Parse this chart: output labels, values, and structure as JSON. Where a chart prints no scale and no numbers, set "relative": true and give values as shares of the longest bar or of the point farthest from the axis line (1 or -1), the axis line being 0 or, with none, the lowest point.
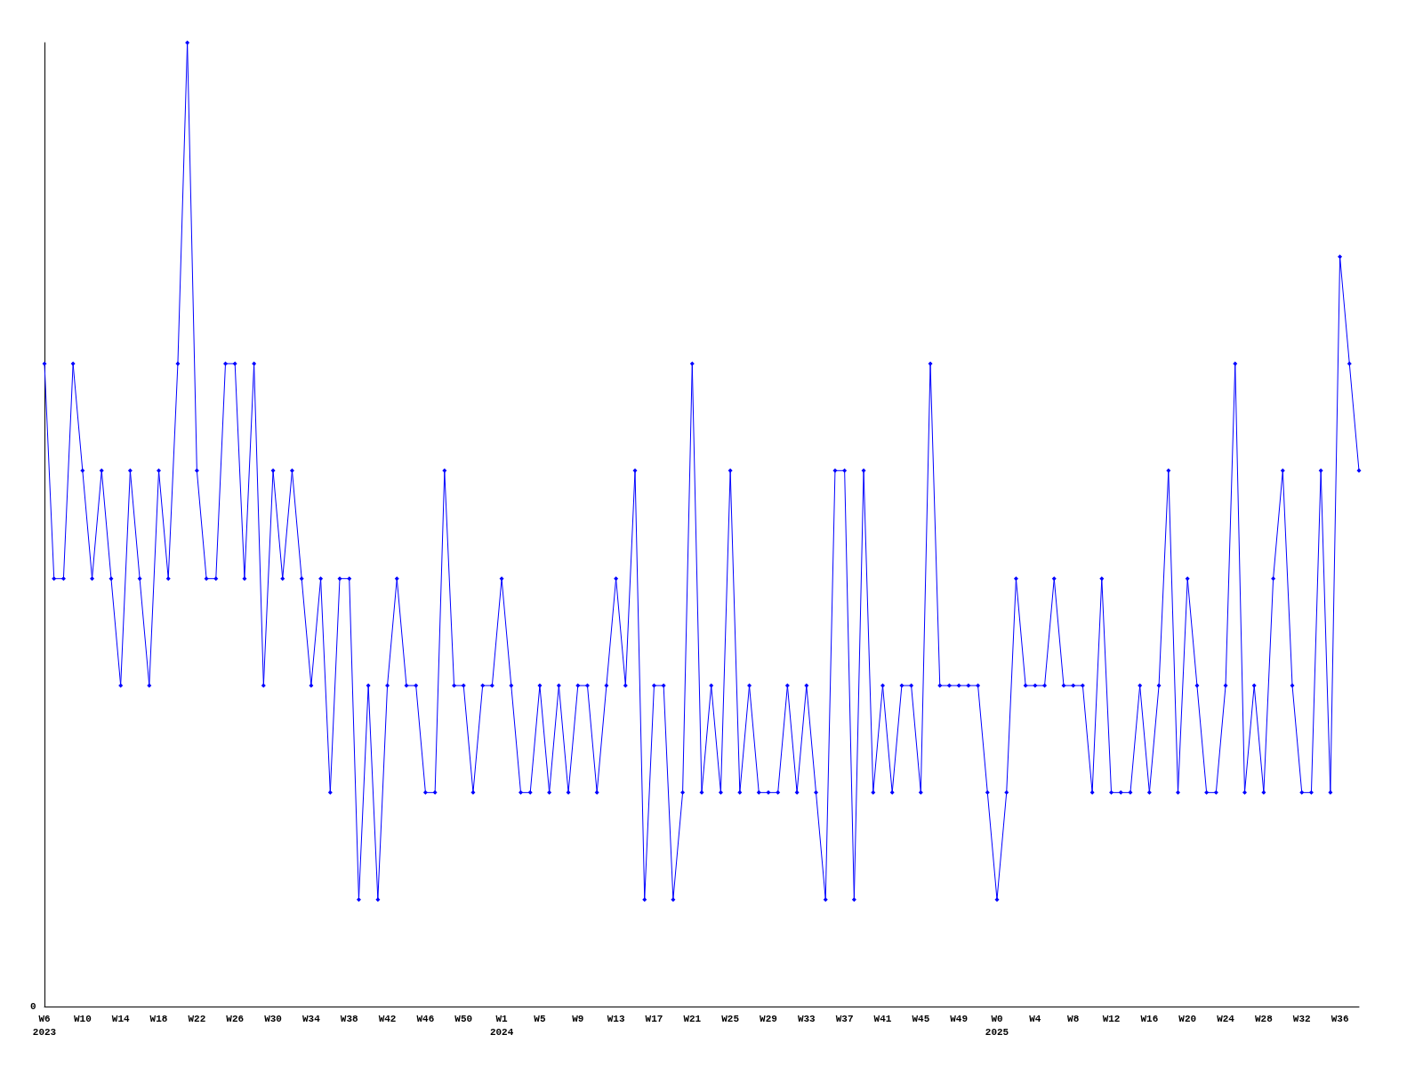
{
  "chart_data": {
    "type": "line",
    "relative": true,
    "annotations": [
      "0"
    ],
    "marker": "diamond",
    "grid": false,
    "categories": [
      "W6\n2023",
      null,
      null,
      null,
      "W10",
      null,
      null,
      null,
      "W14",
      null,
      null,
      null,
      "W18",
      null,
      null,
      null,
      "W22",
      null,
      null,
      null,
      "W26",
      null,
      null,
      null,
      "W30",
      null,
      null,
      null,
      "W34",
      null,
      null,
      null,
      "W38",
      null,
      null,
      null,
      "W42",
      null,
      null,
      null,
      "W46",
      null,
      null,
      null,
      "W50",
      null,
      null,
      null,
      "W1\n2024",
      null,
      null,
      null,
      "W5",
      null,
      null,
      null,
      "W9",
      null,
      null,
      null,
      "W13",
      null,
      null,
      null,
      "W17",
      null,
      null,
      null,
      "W21",
      null,
      null,
      null,
      "W25",
      null,
      null,
      null,
      "W29",
      null,
      null,
      null,
      "W33",
      null,
      null,
      null,
      "W37",
      null,
      null,
      null,
      "W41",
      null,
      null,
      null,
      "W45",
      null,
      null,
      null,
      "W49",
      null,
      null,
      null,
      "W0\n2025",
      null,
      null,
      null,
      "W4",
      null,
      null,
      null,
      "W8",
      null,
      null,
      null,
      "W12",
      null,
      null,
      null,
      "W16",
      null,
      null,
      null,
      "W20",
      null,
      null,
      null,
      "W24",
      null,
      null,
      null,
      "W28",
      null,
      null,
      null,
      "W32",
      null,
      null,
      null,
      "W36",
      null,
      null
    ],
    "series": [
      {
        "color": "#0000ff",
        "values": [
          0.667,
          0.444,
          0.444,
          0.667,
          0.556,
          0.444,
          0.556,
          0.444,
          0.333,
          0.556,
          0.444,
          0.333,
          0.556,
          0.444,
          0.667,
          1,
          0.556,
          0.444,
          0.444,
          0.667,
          0.667,
          0.444,
          0.667,
          0.333,
          0.556,
          0.444,
          0.556,
          0.444,
          0.333,
          0.444,
          0.222,
          0.444,
          0.444,
          0.111,
          0.333,
          0.111,
          0.333,
          0.444,
          0.333,
          0.333,
          0.222,
          0.222,
          0.556,
          0.333,
          0.333,
          0.222,
          0.333,
          0.333,
          0.444,
          0.333,
          0.222,
          0.222,
          0.333,
          0.222,
          0.333,
          0.222,
          0.333,
          0.333,
          0.222,
          0.333,
          0.444,
          0.333,
          0.556,
          0.111,
          0.333,
          0.333,
          0.111,
          0.222,
          0.667,
          0.222,
          0.333,
          0.222,
          0.556,
          0.222,
          0.333,
          0.222,
          0.222,
          0.222,
          0.333,
          0.222,
          0.333,
          0.222,
          0.111,
          0.556,
          0.556,
          0.111,
          0.556,
          0.222,
          0.333,
          0.222,
          0.333,
          0.333,
          0.222,
          0.667,
          0.333,
          0.333,
          0.333,
          0.333,
          0.333,
          0.222,
          0.111,
          0.222,
          0.444,
          0.333,
          0.333,
          0.333,
          0.444,
          0.333,
          0.333,
          0.333,
          0.222,
          0.444,
          0.222,
          0.222,
          0.222,
          0.333,
          0.222,
          0.333,
          0.556,
          0.222,
          0.444,
          0.333,
          0.222,
          0.222,
          0.333,
          0.667,
          0.222,
          0.333,
          0.222,
          0.444,
          0.556,
          0.333,
          0.222,
          0.222,
          0.556,
          0.222,
          0.778,
          0.667,
          0.556
        ]
      }
    ]
  }
}
